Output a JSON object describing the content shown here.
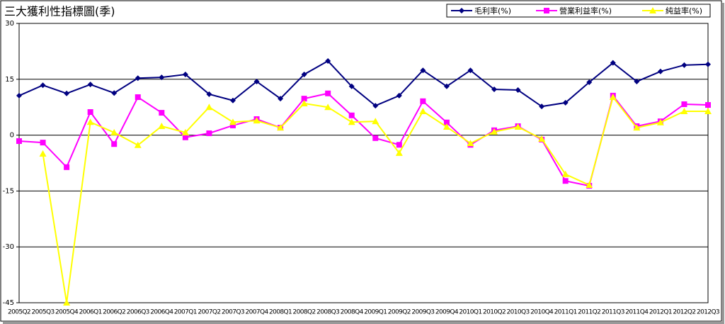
{
  "chart_data": {
    "type": "line",
    "title": "三大獲利性指標圖(季)",
    "categories": [
      "2005Q2",
      "2005Q3",
      "2005Q4",
      "2006Q1",
      "2006Q2",
      "2006Q3",
      "2006Q4",
      "2007Q1",
      "2007Q2",
      "2007Q3",
      "2007Q4",
      "2008Q1",
      "2008Q2",
      "2008Q3",
      "2008Q4",
      "2009Q1",
      "2009Q2",
      "2009Q3",
      "2009Q4",
      "2010Q1",
      "2010Q2",
      "2010Q3",
      "2010Q4",
      "2011Q1",
      "2011Q2",
      "2011Q3",
      "2011Q4",
      "2012Q1",
      "2012Q2",
      "2012Q3"
    ],
    "series": [
      {
        "name": "毛利率(%)",
        "color": "#000080",
        "marker": "diamond",
        "values": [
          10.6,
          13.4,
          11.2,
          13.6,
          11.3,
          15.3,
          15.5,
          16.3,
          11.0,
          9.3,
          14.4,
          9.8,
          16.3,
          19.9,
          13.1,
          7.9,
          10.6,
          17.4,
          13.1,
          17.4,
          12.3,
          12.1,
          7.7,
          8.7,
          14.2,
          19.4,
          14.4,
          17.1,
          18.8,
          19.0
        ]
      },
      {
        "name": "營業利益率(%)",
        "color": "#ff00ff",
        "marker": "square",
        "values": [
          -1.6,
          -2.0,
          -8.6,
          6.2,
          -2.4,
          10.2,
          6.0,
          -0.6,
          0.5,
          2.6,
          4.3,
          2.0,
          9.8,
          11.2,
          5.3,
          -0.8,
          -2.6,
          9.1,
          3.4,
          -2.6,
          1.3,
          2.4,
          -1.2,
          -12.3,
          -13.6,
          10.6,
          2.4,
          3.7,
          8.3,
          8.1
        ]
      },
      {
        "name": "純益率(%)",
        "color": "#ffff00",
        "marker": "triangle",
        "values": [
          null,
          -5.0,
          -45.0,
          3.5,
          0.7,
          -2.7,
          2.4,
          0.7,
          7.5,
          3.5,
          3.9,
          2.0,
          8.5,
          7.5,
          3.5,
          3.7,
          -4.8,
          6.4,
          2.2,
          -2.2,
          0.9,
          2.2,
          -1.0,
          -10.5,
          -13.4,
          10.2,
          2.0,
          3.4,
          6.4,
          6.4
        ]
      }
    ],
    "ylim": [
      -45,
      30
    ],
    "yticks": [
      -45,
      -30,
      -15,
      0,
      15,
      30
    ],
    "grid": true,
    "legend": "top-right"
  }
}
